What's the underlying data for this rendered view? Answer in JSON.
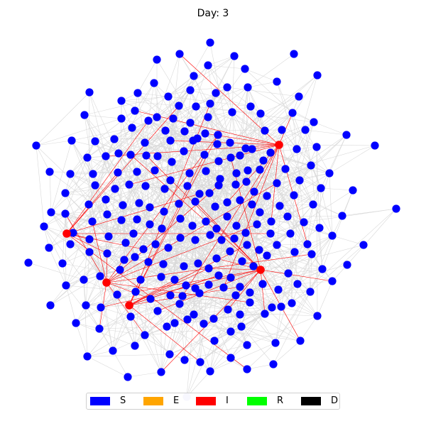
{
  "title": "Day: 3",
  "colors": {
    "S": "#0000ff",
    "E": "#ffa500",
    "I": "#ff0000",
    "R": "#00ff00",
    "D": "#000000",
    "edge": "#d9d9d9",
    "infected_edge": "#ff0000"
  },
  "legend": [
    {
      "label": "S",
      "color": "#0000ff"
    },
    {
      "label": "E",
      "color": "#ffa500"
    },
    {
      "label": "I",
      "color": "#ff0000"
    },
    {
      "label": "R",
      "color": "#00ff00"
    },
    {
      "label": "D",
      "color": "#000000"
    }
  ]
}
